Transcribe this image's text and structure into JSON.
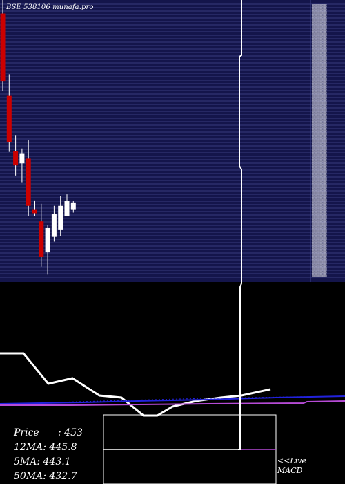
{
  "header": {
    "watermark": "BSE 538106  munafa.pro"
  },
  "stats": {
    "price_label": "Price",
    "price_value": ": 453",
    "ma12_label": "12MA",
    "ma12_value": ": 445.8",
    "ma5_label": "5MA",
    "ma5_value": ": 443.1",
    "ma50_label": "50MA",
    "ma50_value": ": 432.7"
  },
  "live": {
    "line1": "<<Live",
    "line2": "MACD"
  },
  "colors": {
    "panel_bg": "#14154b",
    "gridline": "#5d62b0",
    "bear": "#cc0000",
    "bull": "#ffffff",
    "blue_line": "#2222dd",
    "purple_line": "#b64bd6",
    "macd_line": "#ffffff"
  },
  "chart_data": {
    "type": "candlestick",
    "series": [
      {
        "open": 600,
        "high": 640,
        "low": 485,
        "close": 500
      },
      {
        "open": 478,
        "high": 510,
        "low": 395,
        "close": 410
      },
      {
        "open": 396,
        "high": 420,
        "low": 360,
        "close": 375
      },
      {
        "open": 378,
        "high": 400,
        "low": 350,
        "close": 392
      },
      {
        "open": 385,
        "high": 412,
        "low": 300,
        "close": 315
      },
      {
        "open": 310,
        "high": 323,
        "low": 300,
        "close": 304
      },
      {
        "open": 292,
        "high": 318,
        "low": 225,
        "close": 240
      },
      {
        "open": 246,
        "high": 286,
        "low": 213,
        "close": 282
      },
      {
        "open": 269,
        "high": 315,
        "low": 262,
        "close": 303
      },
      {
        "open": 280,
        "high": 330,
        "low": 270,
        "close": 315
      },
      {
        "open": 300,
        "high": 332,
        "low": 315,
        "close": 322
      },
      {
        "open": 310,
        "high": 322,
        "low": 305,
        "close": 320
      }
    ]
  }
}
